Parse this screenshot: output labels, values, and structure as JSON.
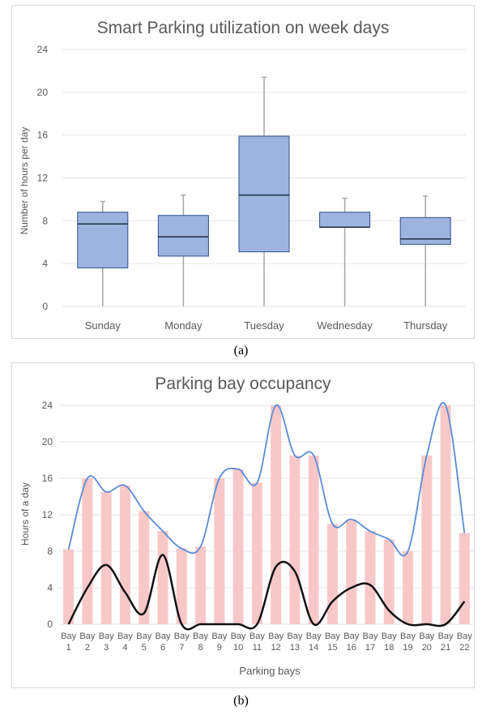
{
  "chart_data": [
    {
      "type": "box",
      "title": "Smart Parking utilization on week days",
      "xlabel": "",
      "ylabel": "Number of hours per day",
      "ylim": [
        0,
        24
      ],
      "yticks": [
        "0",
        "4",
        "8",
        "12",
        "16",
        "20",
        "24"
      ],
      "grid": true,
      "legend": "none",
      "colors": {
        "box_fill": "#9db4e0",
        "box_edge": "#2f4f8f",
        "whisker": "#a6a6a6",
        "grid": "#e6e6e6"
      },
      "categories": [
        "Sunday",
        "Monday",
        "Tuesday",
        "Wednesday",
        "Thursday"
      ],
      "boxes": [
        {
          "category": "Sunday",
          "min": 0,
          "q1": 3.6,
          "median": 7.7,
          "q3": 8.8,
          "max": 9.8
        },
        {
          "category": "Monday",
          "min": 0,
          "q1": 4.7,
          "median": 6.5,
          "q3": 8.5,
          "max": 10.4
        },
        {
          "category": "Tuesday",
          "min": 0,
          "q1": 5.1,
          "median": 10.4,
          "q3": 15.9,
          "max": 21.4
        },
        {
          "category": "Wednesday",
          "min": 0,
          "q1": 7.4,
          "median": 7.4,
          "q3": 8.8,
          "max": 10.1
        },
        {
          "category": "Thursday",
          "min": 0,
          "q1": 5.8,
          "median": 6.3,
          "q3": 8.3,
          "max": 10.3
        }
      ],
      "caption": "(a)"
    },
    {
      "type": "bar",
      "title": "Parking bay occupancy",
      "xlabel": "Parking bays",
      "ylabel": "Hours of a day",
      "ylim": [
        0,
        24
      ],
      "yticks": [
        "0",
        "4",
        "8",
        "12",
        "16",
        "20",
        "24"
      ],
      "grid": true,
      "legend": "none",
      "colors": {
        "bar": "#f8c8c8",
        "upper_line": "#5b8bd6",
        "lower_line": "#111111",
        "grid": "#e6e6e6"
      },
      "categories": [
        [
          "Bay",
          "1"
        ],
        [
          "Bay",
          "2"
        ],
        [
          "Bay",
          "3"
        ],
        [
          "Bay",
          "4"
        ],
        [
          "Bay",
          "5"
        ],
        [
          "Bay",
          "6"
        ],
        [
          "Bay",
          "7"
        ],
        [
          "Bay",
          "8"
        ],
        [
          "Bay",
          "9"
        ],
        [
          "Bay",
          "10"
        ],
        [
          "Bay",
          "11"
        ],
        [
          "Bay",
          "12"
        ],
        [
          "Bay",
          "13"
        ],
        [
          "Bay",
          "14"
        ],
        [
          "Bay",
          "15"
        ],
        [
          "Bay",
          "16"
        ],
        [
          "Bay",
          "17"
        ],
        [
          "Bay",
          "18"
        ],
        [
          "Bay",
          "19"
        ],
        [
          "Bay",
          "20"
        ],
        [
          "Bay",
          "21"
        ],
        [
          "Bay",
          "22"
        ]
      ],
      "series": [
        {
          "values": [
            8.2,
            16.0,
            14.5,
            15.2,
            12.4,
            10.2,
            8.3,
            8.5,
            16.0,
            17.0,
            15.5,
            24.0,
            18.5,
            18.5,
            11.0,
            11.5,
            10.2,
            9.3,
            8.0,
            18.5,
            24.0,
            10.0
          ]
        },
        {
          "values": [
            0,
            4.0,
            6.5,
            3.5,
            1.2,
            7.6,
            0,
            0,
            0,
            0,
            0,
            6.3,
            5.8,
            0,
            2.5,
            4.0,
            4.3,
            1.5,
            0,
            0,
            0,
            2.5
          ]
        }
      ],
      "caption": "(b)"
    }
  ]
}
